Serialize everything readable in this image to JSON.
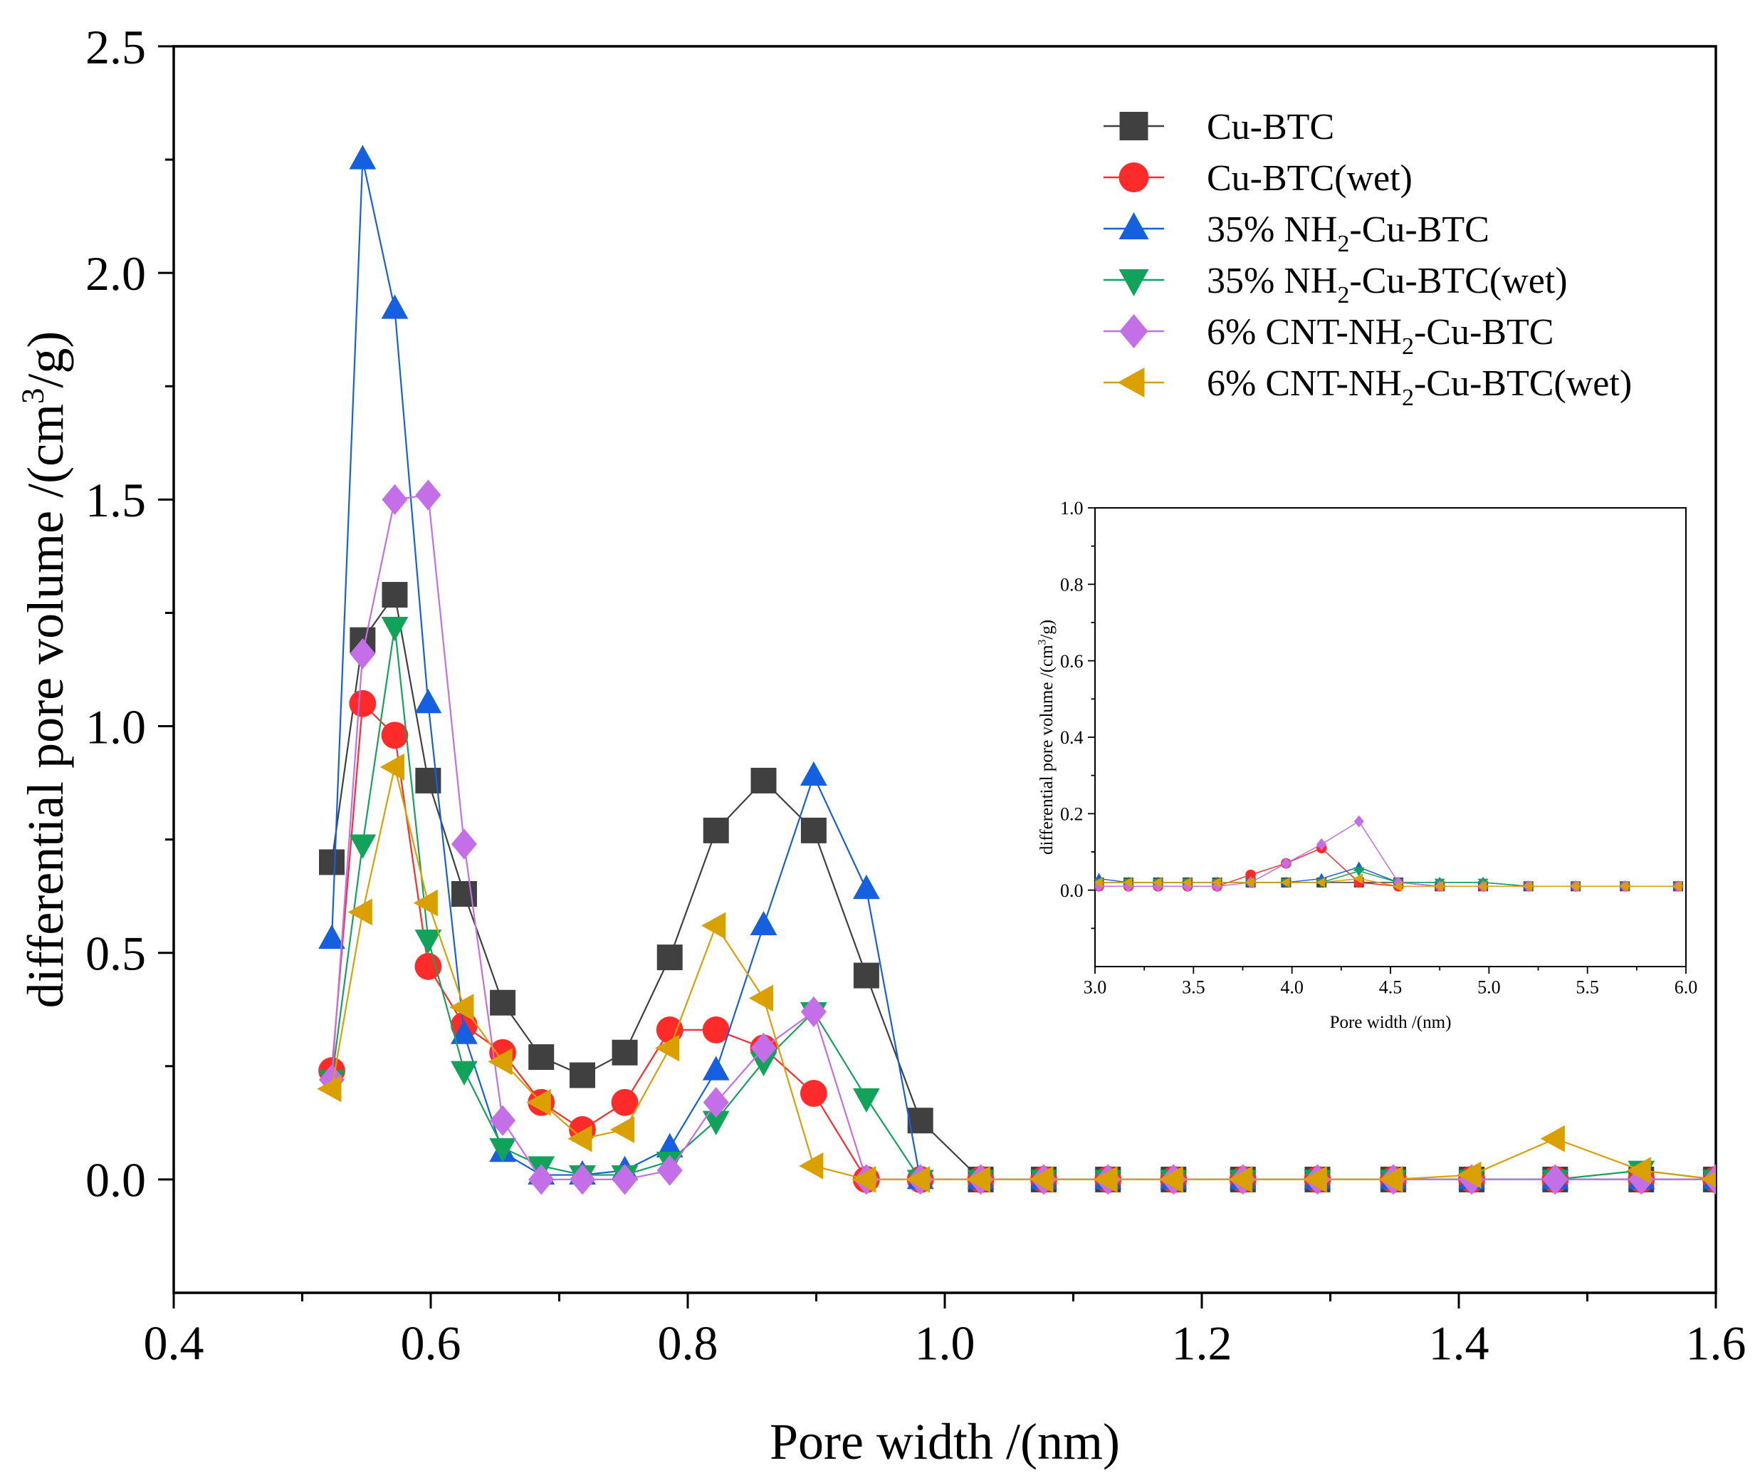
{
  "chart_data": [
    {
      "id": "main",
      "type": "line",
      "title": "",
      "xlabel": "Pore width /(nm)",
      "ylabel_main": "differential pore volume /(cm",
      "ylabel_sup": "3",
      "ylabel_tail": "/g)",
      "xlim": [
        0.4,
        1.6
      ],
      "ylim": [
        -0.25,
        2.5
      ],
      "xticks": [
        "0.4",
        "0.6",
        "0.8",
        "1.0",
        "1.2",
        "1.4",
        "1.6"
      ],
      "yticks": [
        "0.0",
        "0.5",
        "1.0",
        "1.5",
        "2.0",
        "2.5"
      ],
      "legend_position": "top-right",
      "x": [
        0.523,
        0.547,
        0.572,
        0.598,
        0.626,
        0.656,
        0.686,
        0.718,
        0.751,
        0.786,
        0.822,
        0.859,
        0.898,
        0.939,
        0.981,
        1.028,
        1.077,
        1.127,
        1.178,
        1.232,
        1.29,
        1.349,
        1.41,
        1.475,
        1.542,
        1.6
      ],
      "series": [
        {
          "name": "Cu-BTC",
          "color": "#404040",
          "marker": "square",
          "values": [
            0.7,
            1.19,
            1.29,
            0.88,
            0.63,
            0.39,
            0.27,
            0.23,
            0.28,
            0.49,
            0.77,
            0.88,
            0.77,
            0.45,
            0.13,
            0,
            0,
            0,
            0,
            0,
            0,
            0,
            0,
            0,
            0,
            0
          ]
        },
        {
          "name": "Cu-BTC(wet)",
          "color": "#ff2a2a",
          "marker": "circle",
          "values": [
            0.24,
            1.05,
            0.98,
            0.47,
            0.34,
            0.28,
            0.17,
            0.11,
            0.17,
            0.33,
            0.33,
            0.29,
            0.19,
            0.0,
            0,
            0,
            0,
            0,
            0,
            0,
            0,
            0,
            0,
            0,
            0,
            0
          ]
        },
        {
          "name": "35% NH2-Cu-BTC",
          "label_pre": "35% NH",
          "label_sub": "2",
          "label_post": "-Cu-BTC",
          "color": "#1560e0",
          "marker": "triangle-up",
          "values": [
            0.53,
            2.25,
            1.92,
            1.05,
            0.32,
            0.06,
            0.01,
            0.01,
            0.02,
            0.07,
            0.24,
            0.56,
            0.89,
            0.64,
            0.0,
            0,
            0,
            0,
            0,
            0,
            0,
            0,
            0,
            0,
            0,
            0
          ]
        },
        {
          "name": "35% NH2-Cu-BTC(wet)",
          "label_pre": "35% NH",
          "label_sub": "2",
          "label_post": "-Cu-BTC(wet)",
          "color": "#12a35a",
          "marker": "triangle-down",
          "values": [
            0.22,
            0.74,
            1.22,
            0.53,
            0.24,
            0.07,
            0.03,
            0.01,
            0.01,
            0.04,
            0.13,
            0.26,
            0.37,
            0.18,
            0.0,
            0,
            0,
            0,
            0,
            0,
            0,
            0,
            0,
            0.0,
            0.02,
            0.0
          ]
        },
        {
          "name": "6% CNT-NH2-Cu-BTC",
          "label_pre": "6% CNT-NH",
          "label_sub": "2",
          "label_post": "-Cu-BTC",
          "color": "#c46ee8",
          "marker": "diamond",
          "values": [
            0.22,
            1.16,
            1.5,
            1.51,
            0.74,
            0.13,
            0.0,
            0.0,
            0.0,
            0.02,
            0.17,
            0.29,
            0.37,
            0.0,
            0,
            0,
            0,
            0,
            0,
            0,
            0,
            0,
            0,
            0,
            0,
            0
          ]
        },
        {
          "name": "6% CNT-NH2-Cu-BTC(wet)",
          "label_pre": "6% CNT-NH",
          "label_sub": "2",
          "label_post": "-Cu-BTC(wet)",
          "color": "#daa000",
          "marker": "triangle-left",
          "values": [
            0.2,
            0.59,
            0.91,
            0.61,
            0.38,
            0.26,
            0.17,
            0.09,
            0.11,
            0.29,
            0.56,
            0.4,
            0.03,
            0.0,
            0,
            0,
            0,
            0,
            0,
            0,
            0,
            0.0,
            0.01,
            0.09,
            0.02,
            0.0
          ]
        }
      ]
    },
    {
      "id": "inset",
      "type": "line",
      "title": "",
      "xlabel": "Pore width /(nm)",
      "ylabel_main": "differential pore volume /(cm",
      "ylabel_sup": "3",
      "ylabel_tail": "/g)",
      "xlim": [
        3.0,
        6.0
      ],
      "ylim": [
        -0.2,
        1.0
      ],
      "xticks": [
        "3.0",
        "3.5",
        "4.0",
        "4.5",
        "5.0",
        "5.5",
        "6.0"
      ],
      "yticks": [
        "0.0",
        "0.2",
        "0.4",
        "0.6",
        "0.8",
        "1.0"
      ],
      "x": [
        3.02,
        3.17,
        3.32,
        3.47,
        3.62,
        3.79,
        3.97,
        4.15,
        4.34,
        4.54,
        4.75,
        4.97,
        5.2,
        5.44,
        5.69,
        5.96
      ],
      "series": [
        {
          "name": "Cu-BTC",
          "values": [
            0.02,
            0.02,
            0.02,
            0.02,
            0.02,
            0.02,
            0.02,
            0.02,
            0.02,
            0.02,
            0.01,
            0.01,
            0.01,
            0.01,
            0.01,
            0.01
          ]
        },
        {
          "name": "Cu-BTC(wet)",
          "values": [
            0.01,
            0.01,
            0.01,
            0.01,
            0.01,
            0.04,
            0.07,
            0.11,
            0.02,
            0.01,
            0.01,
            0.01,
            0.01,
            0.01,
            0.01,
            0.01
          ]
        },
        {
          "name": "35% NH2-Cu-BTC",
          "values": [
            0.03,
            0.02,
            0.02,
            0.02,
            0.02,
            0.02,
            0.02,
            0.03,
            0.06,
            0.02,
            0.02,
            0.02,
            0.01,
            0.01,
            0.01,
            0.01
          ]
        },
        {
          "name": "35% NH2-Cu-BTC(wet)",
          "values": [
            0.02,
            0.02,
            0.02,
            0.02,
            0.02,
            0.02,
            0.02,
            0.02,
            0.05,
            0.02,
            0.02,
            0.02,
            0.01,
            0.01,
            0.01,
            0.01
          ]
        },
        {
          "name": "6% CNT-NH2-Cu-BTC",
          "values": [
            0.01,
            0.01,
            0.01,
            0.01,
            0.01,
            0.02,
            0.07,
            0.12,
            0.18,
            0.02,
            0.01,
            0.01,
            0.01,
            0.01,
            0.01,
            0.01
          ]
        },
        {
          "name": "6% CNT-NH2-Cu-BTC(wet)",
          "values": [
            0.02,
            0.02,
            0.02,
            0.02,
            0.02,
            0.02,
            0.02,
            0.02,
            0.03,
            0.01,
            0.01,
            0.01,
            0.01,
            0.01,
            0.01,
            0.01
          ]
        }
      ]
    }
  ]
}
